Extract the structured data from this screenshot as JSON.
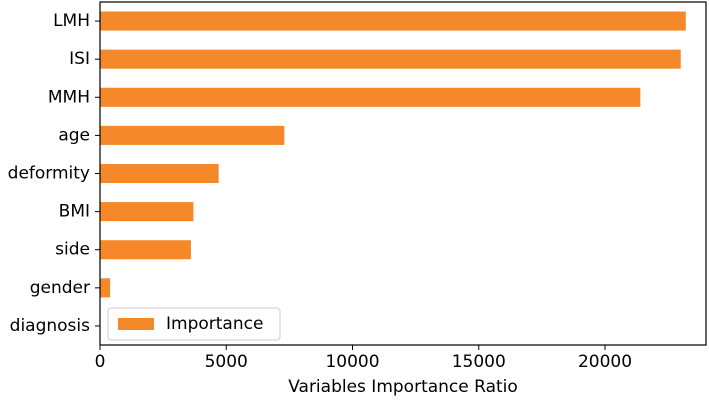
{
  "chart_data": {
    "type": "bar",
    "orientation": "horizontal",
    "categories": [
      "LMH",
      "ISI",
      "MMH",
      "age",
      "deformity",
      "BMI",
      "side",
      "gender",
      "diagnosis"
    ],
    "series": [
      {
        "name": "Importance",
        "values": [
          23200,
          23000,
          21400,
          7300,
          4700,
          3700,
          3600,
          400,
          0
        ],
        "color": "#f5892a"
      }
    ],
    "xlabel": "Variables Importance Ratio",
    "ylabel": "",
    "xlim": [
      0,
      24000
    ],
    "xticks": [
      0,
      5000,
      10000,
      15000,
      20000
    ],
    "xtick_labels": [
      "0",
      "5000",
      "10000",
      "15000",
      "20000"
    ],
    "grid": false,
    "legend_position": "lower-left"
  }
}
